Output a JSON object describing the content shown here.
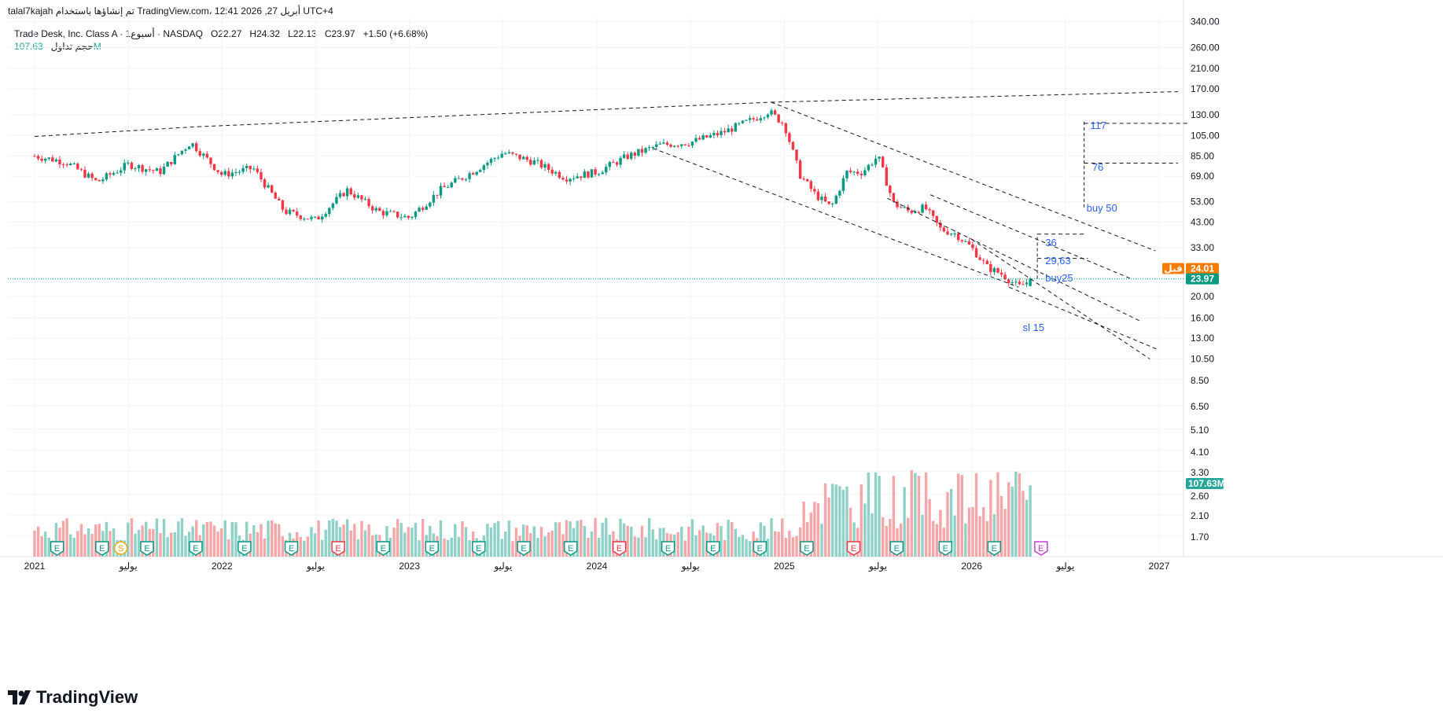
{
  "header": {
    "byline": "talal7kajah تم إنشاؤها باستخدام TradingView.com، 12:41 2026 ,27 أبريل UTC+4"
  },
  "legend": {
    "symbol": "Trade Desk, Inc. Class A · 1أسبوع · NASDAQ",
    "open": "O22.27",
    "high": "H24.32",
    "low": "L22.13",
    "close": "C23.97",
    "change": "+1.50 (+6.68%)",
    "volume_label": "حجم تداول",
    "volume_value": "107.63M"
  },
  "price_badges": {
    "prev_label": "قبل",
    "prev_value": "24.01",
    "last_value": "23.97",
    "volume_value": "107.63M"
  },
  "colors": {
    "up": "#089981",
    "down": "#f23645",
    "vol_up": "#8fd1c7",
    "vol_down": "#f5a6a8",
    "annotation": "#2962ff",
    "prev_badge": "#f57c00",
    "last_badge": "#089981"
  },
  "earnings_markers": [
    "E",
    "E",
    "S",
    "E",
    "E",
    "E",
    "E",
    "E",
    "E",
    "E",
    "E",
    "E",
    "E",
    "E",
    "E",
    "E",
    "E",
    "E",
    "E",
    "E",
    "E",
    "E",
    "E"
  ],
  "footer": {
    "brand": "TradingView"
  },
  "chart_data": {
    "type": "candlestick",
    "y_scale": "log",
    "y_ticks": [
      "340.00",
      "260.00",
      "210.00",
      "170.00",
      "130.00",
      "105.00",
      "85.00",
      "69.00",
      "53.00",
      "43.00",
      "33.00",
      "24.01",
      "20.00",
      "16.00",
      "13.00",
      "10.50",
      "8.50",
      "6.50",
      "5.10",
      "4.10",
      "3.30",
      "2.60",
      "2.10",
      "1.70"
    ],
    "price_y_ticks": [
      340,
      260,
      210,
      170,
      130,
      105,
      85,
      69,
      53,
      43,
      33,
      20,
      16,
      13,
      10.5,
      8.5,
      6.5,
      5.1,
      4.1,
      3.3,
      2.6,
      2.1,
      1.7
    ],
    "x_ticks": [
      "2021",
      "يوليو",
      "2022",
      "يوليو",
      "2023",
      "يوليو",
      "2024",
      "يوليو",
      "2025",
      "يوليو",
      "2026",
      "يوليو",
      "2027"
    ],
    "x_range": [
      "2021-01",
      "2027-01"
    ],
    "y_range": [
      1.5,
      360
    ],
    "grid": true,
    "close_path_monthly": [
      {
        "date": "2021-01",
        "close": 85
      },
      {
        "date": "2021-03",
        "close": 80
      },
      {
        "date": "2021-05",
        "close": 65
      },
      {
        "date": "2021-07",
        "close": 78
      },
      {
        "date": "2021-09",
        "close": 72
      },
      {
        "date": "2021-11",
        "close": 98
      },
      {
        "date": "2022-01",
        "close": 70
      },
      {
        "date": "2022-03",
        "close": 75
      },
      {
        "date": "2022-05",
        "close": 48
      },
      {
        "date": "2022-07",
        "close": 44
      },
      {
        "date": "2022-09",
        "close": 60
      },
      {
        "date": "2022-11",
        "close": 48
      },
      {
        "date": "2023-01",
        "close": 45
      },
      {
        "date": "2023-03",
        "close": 60
      },
      {
        "date": "2023-05",
        "close": 72
      },
      {
        "date": "2023-07",
        "close": 88
      },
      {
        "date": "2023-09",
        "close": 80
      },
      {
        "date": "2023-11",
        "close": 68
      },
      {
        "date": "2024-01",
        "close": 72
      },
      {
        "date": "2024-03",
        "close": 85
      },
      {
        "date": "2024-05",
        "close": 95
      },
      {
        "date": "2024-07",
        "close": 98
      },
      {
        "date": "2024-09",
        "close": 108
      },
      {
        "date": "2024-11",
        "close": 124
      },
      {
        "date": "2024-12",
        "close": 135
      },
      {
        "date": "2025-01",
        "close": 118
      },
      {
        "date": "2025-02",
        "close": 70
      },
      {
        "date": "2025-03",
        "close": 57
      },
      {
        "date": "2025-04",
        "close": 50
      },
      {
        "date": "2025-05",
        "close": 72
      },
      {
        "date": "2025-06",
        "close": 72
      },
      {
        "date": "2025-07",
        "close": 85
      },
      {
        "date": "2025-08",
        "close": 52
      },
      {
        "date": "2025-09",
        "close": 48
      },
      {
        "date": "2025-10",
        "close": 50
      },
      {
        "date": "2025-11",
        "close": 40
      },
      {
        "date": "2025-12",
        "close": 38
      },
      {
        "date": "2026-01",
        "close": 33
      },
      {
        "date": "2026-02",
        "close": 27
      },
      {
        "date": "2026-03",
        "close": 25
      },
      {
        "date": "2026-04",
        "close": 22
      },
      {
        "date": "2026-04-27",
        "close": 23.97
      }
    ],
    "annotations": [
      {
        "text": "117",
        "price": 117
      },
      {
        "text": "76",
        "price": 76
      },
      {
        "text": "buy 50",
        "price": 50
      },
      {
        "text": "36",
        "price": 36
      },
      {
        "text": "29,63",
        "price": 29.63
      },
      {
        "text": "buy25",
        "price": 24.5
      },
      {
        "text": "sl 15",
        "price": 14.5
      }
    ],
    "last_price": 23.97,
    "prev_close": 24.01,
    "last_volume": "107.63M"
  }
}
